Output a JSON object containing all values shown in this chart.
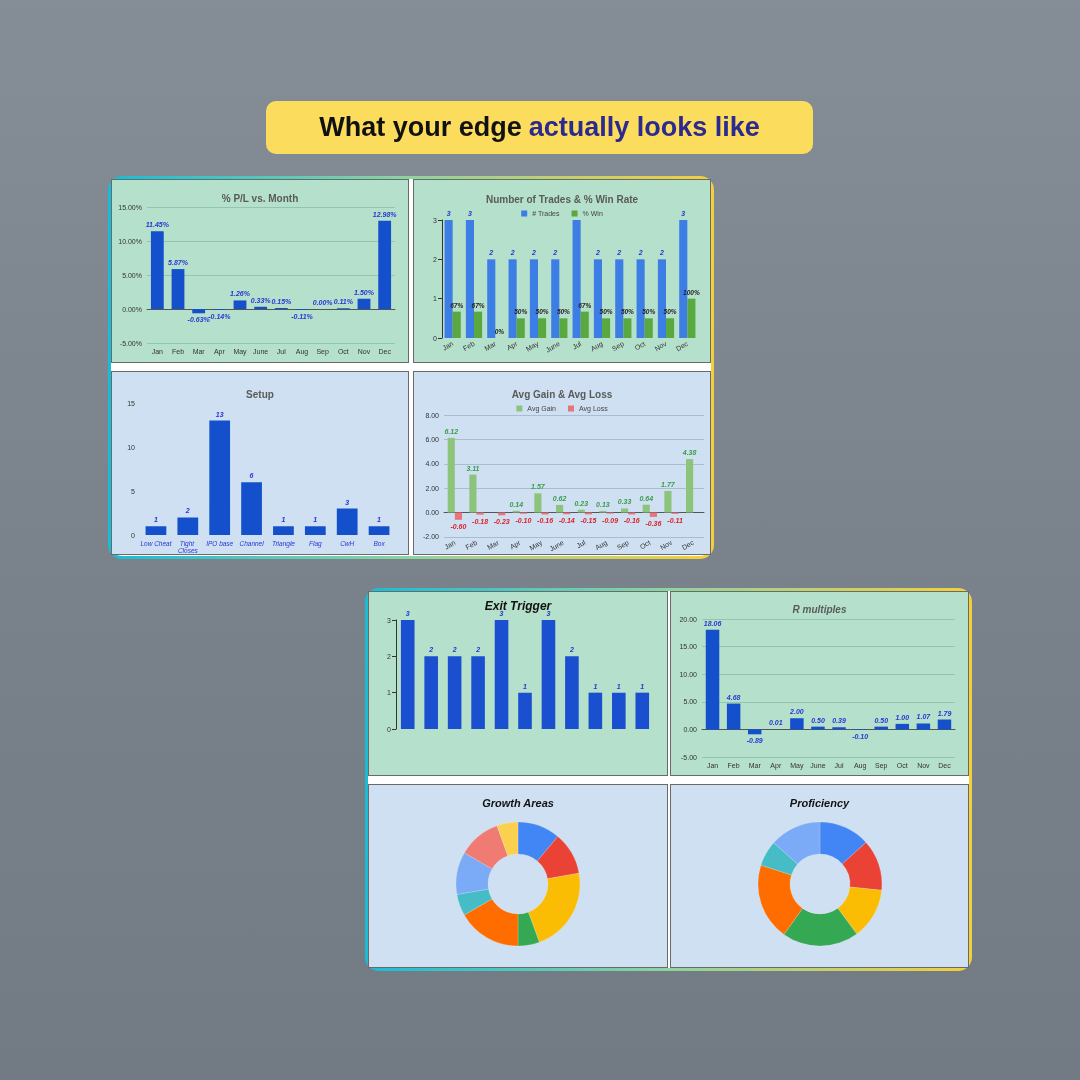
{
  "chart_data": [
    {
      "type": "other",
      "title": "What your edge actually looks like"
    },
    {
      "type": "bar",
      "title": "% P/L vs. Month",
      "categories": [
        "Jan",
        "Feb",
        "Mar",
        "Apr",
        "May",
        "June",
        "Jul",
        "Aug",
        "Sep",
        "Oct",
        "Nov",
        "Dec"
      ],
      "values": [
        11.45,
        5.87,
        -0.63,
        -0.14,
        1.26,
        0.33,
        0.15,
        -0.11,
        0,
        0.11,
        1.5,
        12.98
      ],
      "color": "#1550cc",
      "value_labels": [
        "11.45%",
        "5.87%",
        "-0.63%",
        "-0.14%",
        "1.26%",
        "0.33%",
        "0.15%",
        "-0.11%",
        "0.00%",
        "0.11%",
        "1.50%",
        "12.98%"
      ],
      "ylim": [
        -5,
        15
      ],
      "yticks": [
        {
          "value": -5,
          "label": "-5.00%"
        },
        {
          "value": 0,
          "label": "0.00%"
        },
        {
          "value": 5,
          "label": "5.00%"
        },
        {
          "value": 10,
          "label": "10.00%"
        },
        {
          "value": 15,
          "label": "15.00%"
        }
      ],
      "grid": "y"
    },
    {
      "type": "bar",
      "title": "Number of Trades & % Win Rate",
      "categories": [
        "Jan",
        "Feb",
        "Mar",
        "Apr",
        "May",
        "June",
        "Jul",
        "Aug",
        "Sep",
        "Oct",
        "Nov",
        "Dec"
      ],
      "series": [
        {
          "name": "# Trades",
          "color": "#3d7de6",
          "values": [
            3,
            3,
            2,
            2,
            2,
            2,
            3,
            2,
            2,
            2,
            2,
            3
          ],
          "value_labels": [
            "3",
            "3",
            "2",
            "2",
            "2",
            "2",
            null,
            "2",
            "2",
            "2",
            "2",
            "3"
          ]
        },
        {
          "name": "% Win",
          "color": "#5aa840",
          "values": [
            0.67,
            0.67,
            0,
            0.5,
            0.5,
            0.5,
            0.67,
            0.5,
            0.5,
            0.5,
            0.5,
            1
          ],
          "value_labels": [
            "67%",
            "67%",
            "0%",
            "50%",
            "50%",
            "50%",
            "67%",
            "50%",
            "50%",
            "50%",
            "50%",
            "100%"
          ]
        }
      ],
      "ylim": [
        0,
        3
      ],
      "yticks": [
        0,
        1,
        2,
        3
      ],
      "legend": "top"
    },
    {
      "type": "bar",
      "title": "Setup",
      "categories": [
        "Low Cheat",
        "Tight Closes",
        "IPO base",
        "Channel",
        "Triangle",
        "Flag",
        "CwH",
        "Box"
      ],
      "values": [
        1,
        2,
        13,
        6,
        1,
        1,
        3,
        1
      ],
      "color": "#1550cc",
      "data_labels": true,
      "ylim": [
        0,
        15
      ],
      "yticks": [
        0,
        5,
        10,
        15
      ]
    },
    {
      "type": "bar",
      "title": "Avg Gain & Avg Loss",
      "categories": [
        "Jan",
        "Feb",
        "Mar",
        "Apr",
        "May",
        "June",
        "Jul",
        "Aug",
        "Sep",
        "Oct",
        "Nov",
        "Dec"
      ],
      "series": [
        {
          "name": "Avg Gain",
          "color": "#8cc47c",
          "values": [
            6.12,
            3.11,
            null,
            0.14,
            1.57,
            0.62,
            0.23,
            0.13,
            0.33,
            0.64,
            1.77,
            4.38
          ],
          "value_labels": [
            "6.12",
            "3.11",
            null,
            "0.14",
            "1.57",
            "0.62",
            "0.23",
            "0.13",
            "0.33",
            "0.64",
            "1.77",
            "4.38"
          ]
        },
        {
          "name": "Avg Loss",
          "color": "#e8747c",
          "values": [
            -0.6,
            -0.18,
            -0.23,
            -0.1,
            -0.16,
            -0.14,
            -0.15,
            -0.09,
            -0.16,
            -0.36,
            -0.11,
            null
          ],
          "value_labels": [
            "-0.60",
            "-0.18",
            "-0.23",
            "-0.10",
            "-0.16",
            "-0.14",
            "-0.15",
            "-0.09",
            "-0.16",
            "-0.36",
            "-0.11",
            null
          ]
        }
      ],
      "ylim": [
        -2,
        8
      ],
      "yticks": [
        {
          "value": -2,
          "label": "-2.00"
        },
        {
          "value": 0,
          "label": "0.00"
        },
        {
          "value": 2,
          "label": "2.00"
        },
        {
          "value": 4,
          "label": "4.00"
        },
        {
          "value": 6,
          "label": "6.00"
        },
        {
          "value": 8,
          "label": "8.00"
        }
      ],
      "grid": "y",
      "legend": "top"
    },
    {
      "type": "bar",
      "title": "Exit Trigger",
      "categories": [
        null,
        null,
        null,
        null,
        null,
        null,
        null,
        null,
        null,
        null,
        null
      ],
      "values": [
        3,
        2,
        2,
        2,
        3,
        1,
        3,
        2,
        1,
        1,
        1
      ],
      "color": "#1a50d0",
      "data_labels": true,
      "ylim": [
        0,
        3
      ],
      "yticks": [
        0,
        1,
        2,
        3
      ]
    },
    {
      "type": "bar",
      "title": "R multiples",
      "categories": [
        "Jan",
        "Feb",
        "Mar",
        "Apr",
        "May",
        "June",
        "Jul",
        "Aug",
        "Sep",
        "Oct",
        "Nov",
        "Dec"
      ],
      "values": [
        18.06,
        4.68,
        -0.89,
        0.01,
        2,
        0.5,
        0.39,
        -0.1,
        0.5,
        1,
        1.07,
        1.79
      ],
      "color": "#1550cc",
      "value_labels": [
        "18.06",
        "4.68",
        "-0.89",
        "0.01",
        "2.00",
        "0.50",
        "0.39",
        "-0.10",
        "0.50",
        "1.00",
        "1.07",
        "1.79"
      ],
      "ylim": [
        -5,
        20
      ],
      "yticks": [
        {
          "value": -5,
          "label": "-5.00"
        },
        {
          "value": 0,
          "label": "0.00"
        },
        {
          "value": 5,
          "label": "5.00"
        },
        {
          "value": 10,
          "label": "10.00"
        },
        {
          "value": 15,
          "label": "15.00"
        },
        {
          "value": 20,
          "label": "20.00"
        }
      ],
      "grid": "y"
    },
    {
      "type": "donut",
      "title": "Growth Areas",
      "categories": [
        null,
        null,
        null,
        null,
        null,
        null,
        null,
        null,
        null
      ],
      "values": [
        11.1,
        11.1,
        22.2,
        5.6,
        16.7,
        5.6,
        11.1,
        11.1,
        5.5
      ],
      "colors": [
        "#4285f4",
        "#ea4335",
        "#fbbc04",
        "#34a853",
        "#ff6d01",
        "#46bdc6",
        "#7baaf7",
        "#f07b72",
        "#fcd04f"
      ]
    },
    {
      "type": "donut",
      "title": "Proficiency",
      "categories": [
        null,
        null,
        null,
        null,
        null,
        null,
        null
      ],
      "values": [
        13.3,
        13.3,
        13.3,
        20,
        20,
        6.7,
        13.4
      ],
      "colors": [
        "#4285f4",
        "#ea4335",
        "#fbbc04",
        "#34a853",
        "#ff6d01",
        "#46bdc6",
        "#7baaf7"
      ]
    }
  ]
}
